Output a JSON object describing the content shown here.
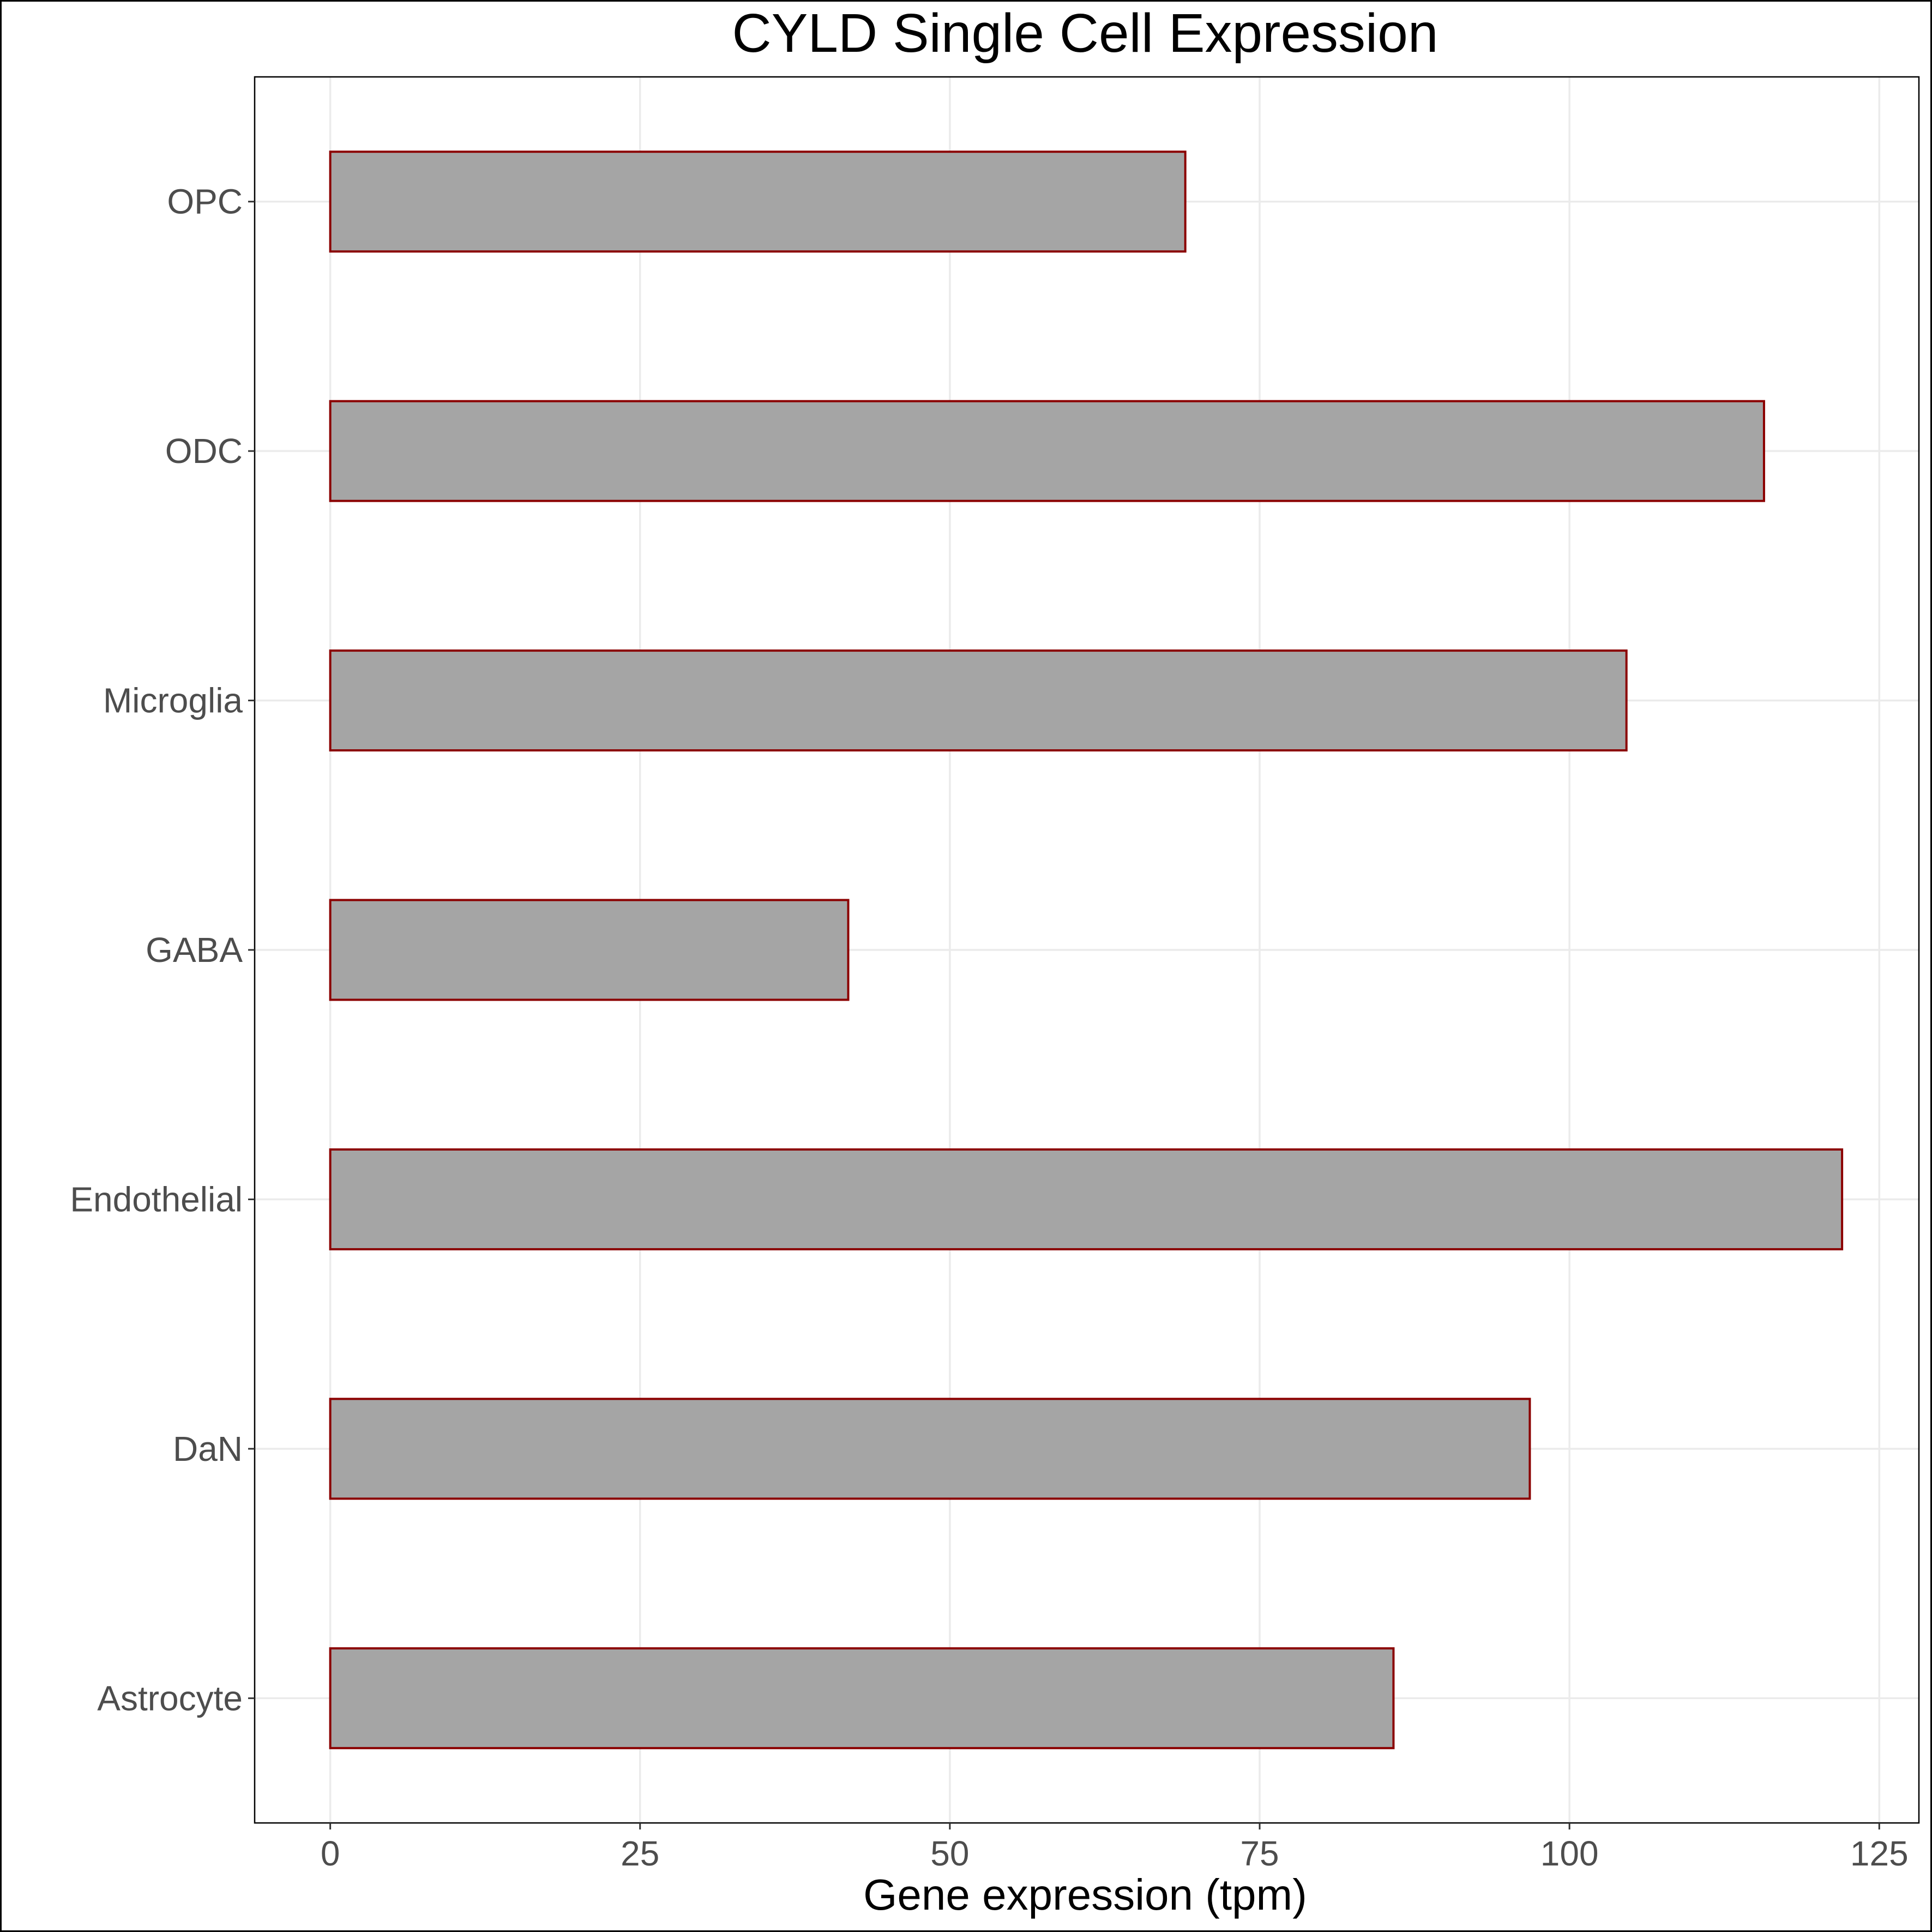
{
  "chart_data": {
    "type": "bar",
    "orientation": "horizontal",
    "title": "CYLD Single Cell Expression",
    "xlabel": "Gene expression (tpm)",
    "ylabel": "",
    "categories": [
      "Astrocyte",
      "DaN",
      "Endothelial",
      "GABA",
      "Microglia",
      "ODC",
      "OPC"
    ],
    "values": [
      85.8,
      96.8,
      122.0,
      41.8,
      104.6,
      115.7,
      69.0
    ],
    "xlim": [
      -6.1,
      128.2
    ],
    "xticks": [
      "0",
      "25",
      "50",
      "75",
      "100",
      "125"
    ],
    "grid": true,
    "legend": "none",
    "colors": {
      "bar_fill": "#a5a5a5",
      "bar_stroke": "#8b0000",
      "grid": "#ebebeb",
      "frame": "#000000"
    }
  }
}
